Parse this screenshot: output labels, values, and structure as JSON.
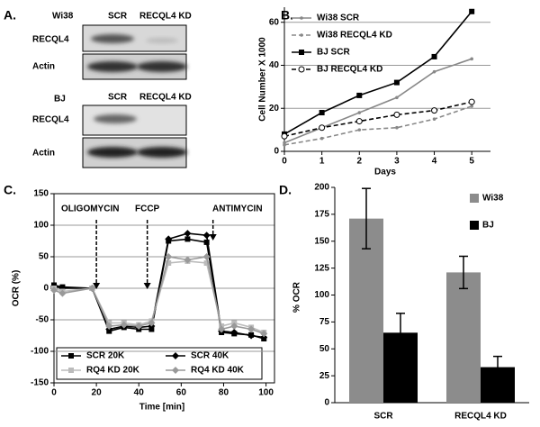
{
  "blot": {
    "panel": "A.",
    "groups": [
      {
        "cell": "Wi38",
        "lanes": [
          "SCR",
          "RECQL4 KD"
        ],
        "rows": [
          "RECQL4",
          "Actin"
        ]
      },
      {
        "cell": "BJ",
        "lanes": [
          "SCR",
          "RECQL4 KD"
        ],
        "rows": [
          "RECQL4",
          "Actin"
        ]
      }
    ]
  },
  "chart_data": [
    {
      "type": "line",
      "panel": "B.",
      "xlabel": "Days",
      "ylabel": "Cell Number X 1000",
      "x": [
        0,
        1,
        2,
        3,
        4,
        5
      ],
      "xlim": [
        0,
        5.5
      ],
      "xticks": [
        0,
        1,
        2,
        3,
        4,
        5
      ],
      "ylim": [
        0,
        67
      ],
      "yticks": [
        0,
        20,
        40,
        60
      ],
      "grid": true,
      "legend": "upper left",
      "series": [
        {
          "name": "Wi38 SCR",
          "color": "#888888",
          "dash": false,
          "marker": "dot",
          "values": [
            4,
            11,
            18,
            25,
            37,
            43
          ]
        },
        {
          "name": "Wi38 RECQL4 KD",
          "color": "#888888",
          "dash": true,
          "marker": "dot",
          "values": [
            3,
            6,
            10,
            11,
            15,
            21
          ]
        },
        {
          "name": "BJ SCR",
          "color": "#000000",
          "dash": false,
          "marker": "square",
          "values": [
            8,
            18,
            26,
            32,
            44,
            65
          ]
        },
        {
          "name": "BJ RECQL4 KD",
          "color": "#000000",
          "dash": true,
          "marker": "circle",
          "values": [
            7,
            11,
            14,
            17,
            19,
            23
          ]
        }
      ]
    },
    {
      "type": "line",
      "panel": "C.",
      "xlabel": "Time [min]",
      "ylabel": "OCR (%)",
      "annotations": [
        "OLIGOMYCIN",
        "FCCP",
        "ANTIMYCIN"
      ],
      "x": [
        0,
        4,
        18,
        26,
        33,
        40,
        46,
        54,
        63,
        72,
        79,
        85,
        93,
        99
      ],
      "xlim": [
        0,
        104
      ],
      "xticks": [
        0,
        20,
        40,
        60,
        80,
        100
      ],
      "ylim": [
        -150,
        150
      ],
      "yticks": [
        -150,
        -100,
        -50,
        0,
        50,
        100,
        150
      ],
      "grid": true,
      "legend": "lower left",
      "series": [
        {
          "name": "SCR 20K",
          "color": "#000000",
          "dash": false,
          "marker": "square",
          "values": [
            5,
            2,
            0,
            -68,
            -62,
            -65,
            -65,
            75,
            78,
            73,
            -70,
            -72,
            -74,
            -80
          ]
        },
        {
          "name": "SCR 40K",
          "color": "#000000",
          "dash": false,
          "marker": "diamond",
          "values": [
            3,
            0,
            0,
            -65,
            -60,
            -62,
            -60,
            78,
            87,
            84,
            -68,
            -70,
            -75,
            -78
          ]
        },
        {
          "name": "RQ4 KD 20K",
          "color": "#bbbbbb",
          "dash": false,
          "marker": "square",
          "values": [
            0,
            -5,
            0,
            -55,
            -55,
            -58,
            -52,
            40,
            43,
            40,
            -60,
            -55,
            -62,
            -70
          ]
        },
        {
          "name": "RQ4 KD 40K",
          "color": "#999999",
          "dash": false,
          "marker": "diamond",
          "values": [
            -3,
            -8,
            0,
            -60,
            -58,
            -60,
            -55,
            50,
            45,
            50,
            -65,
            -60,
            -65,
            -72
          ]
        }
      ]
    },
    {
      "type": "bar",
      "panel": "D.",
      "ylabel": "% OCR",
      "categories": [
        "SCR",
        "RECQL4 KD"
      ],
      "ylim": [
        0,
        200
      ],
      "yticks": [
        0,
        25,
        50,
        75,
        100,
        125,
        150,
        175,
        200
      ],
      "grid": false,
      "legend": "upper right",
      "series": [
        {
          "name": "Wi38",
          "color": "#8c8c8c",
          "values": [
            171,
            121
          ],
          "errors": [
            28,
            15
          ]
        },
        {
          "name": "BJ",
          "color": "#000000",
          "values": [
            65,
            33
          ],
          "errors": [
            18,
            10
          ]
        }
      ]
    }
  ]
}
